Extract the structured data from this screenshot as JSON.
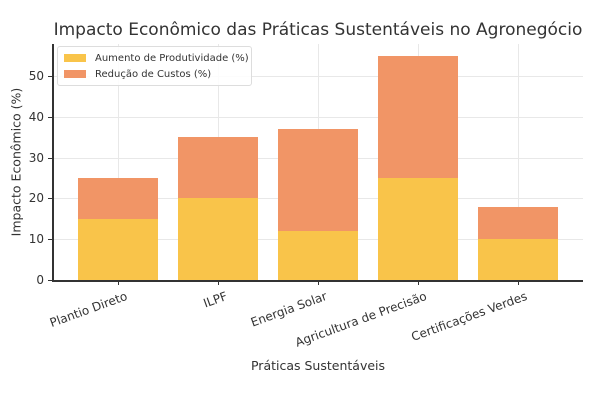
{
  "chart_data": {
    "type": "bar",
    "stacked": true,
    "title": "Impacto Econômico das Práticas Sustentáveis no Agronegócio",
    "xlabel": "Práticas Sustentáveis",
    "ylabel": "Impacto Econômico (%)",
    "categories": [
      "Plantio Direto",
      "ILPF",
      "Energia Solar",
      "Agricultura de Precisão",
      "Certificações Verdes"
    ],
    "series": [
      {
        "name": "Aumento de Produtividade (%)",
        "color": "#F9C44A",
        "values": [
          15,
          20,
          12,
          25,
          10
        ]
      },
      {
        "name": "Redução de Custos (%)",
        "color": "#F19566",
        "values": [
          10,
          15,
          25,
          30,
          8
        ]
      }
    ],
    "ylim": [
      0,
      57.5
    ],
    "yticks": [
      0,
      10,
      20,
      30,
      40,
      50
    ],
    "grid": true,
    "legend_position": "upper left"
  }
}
